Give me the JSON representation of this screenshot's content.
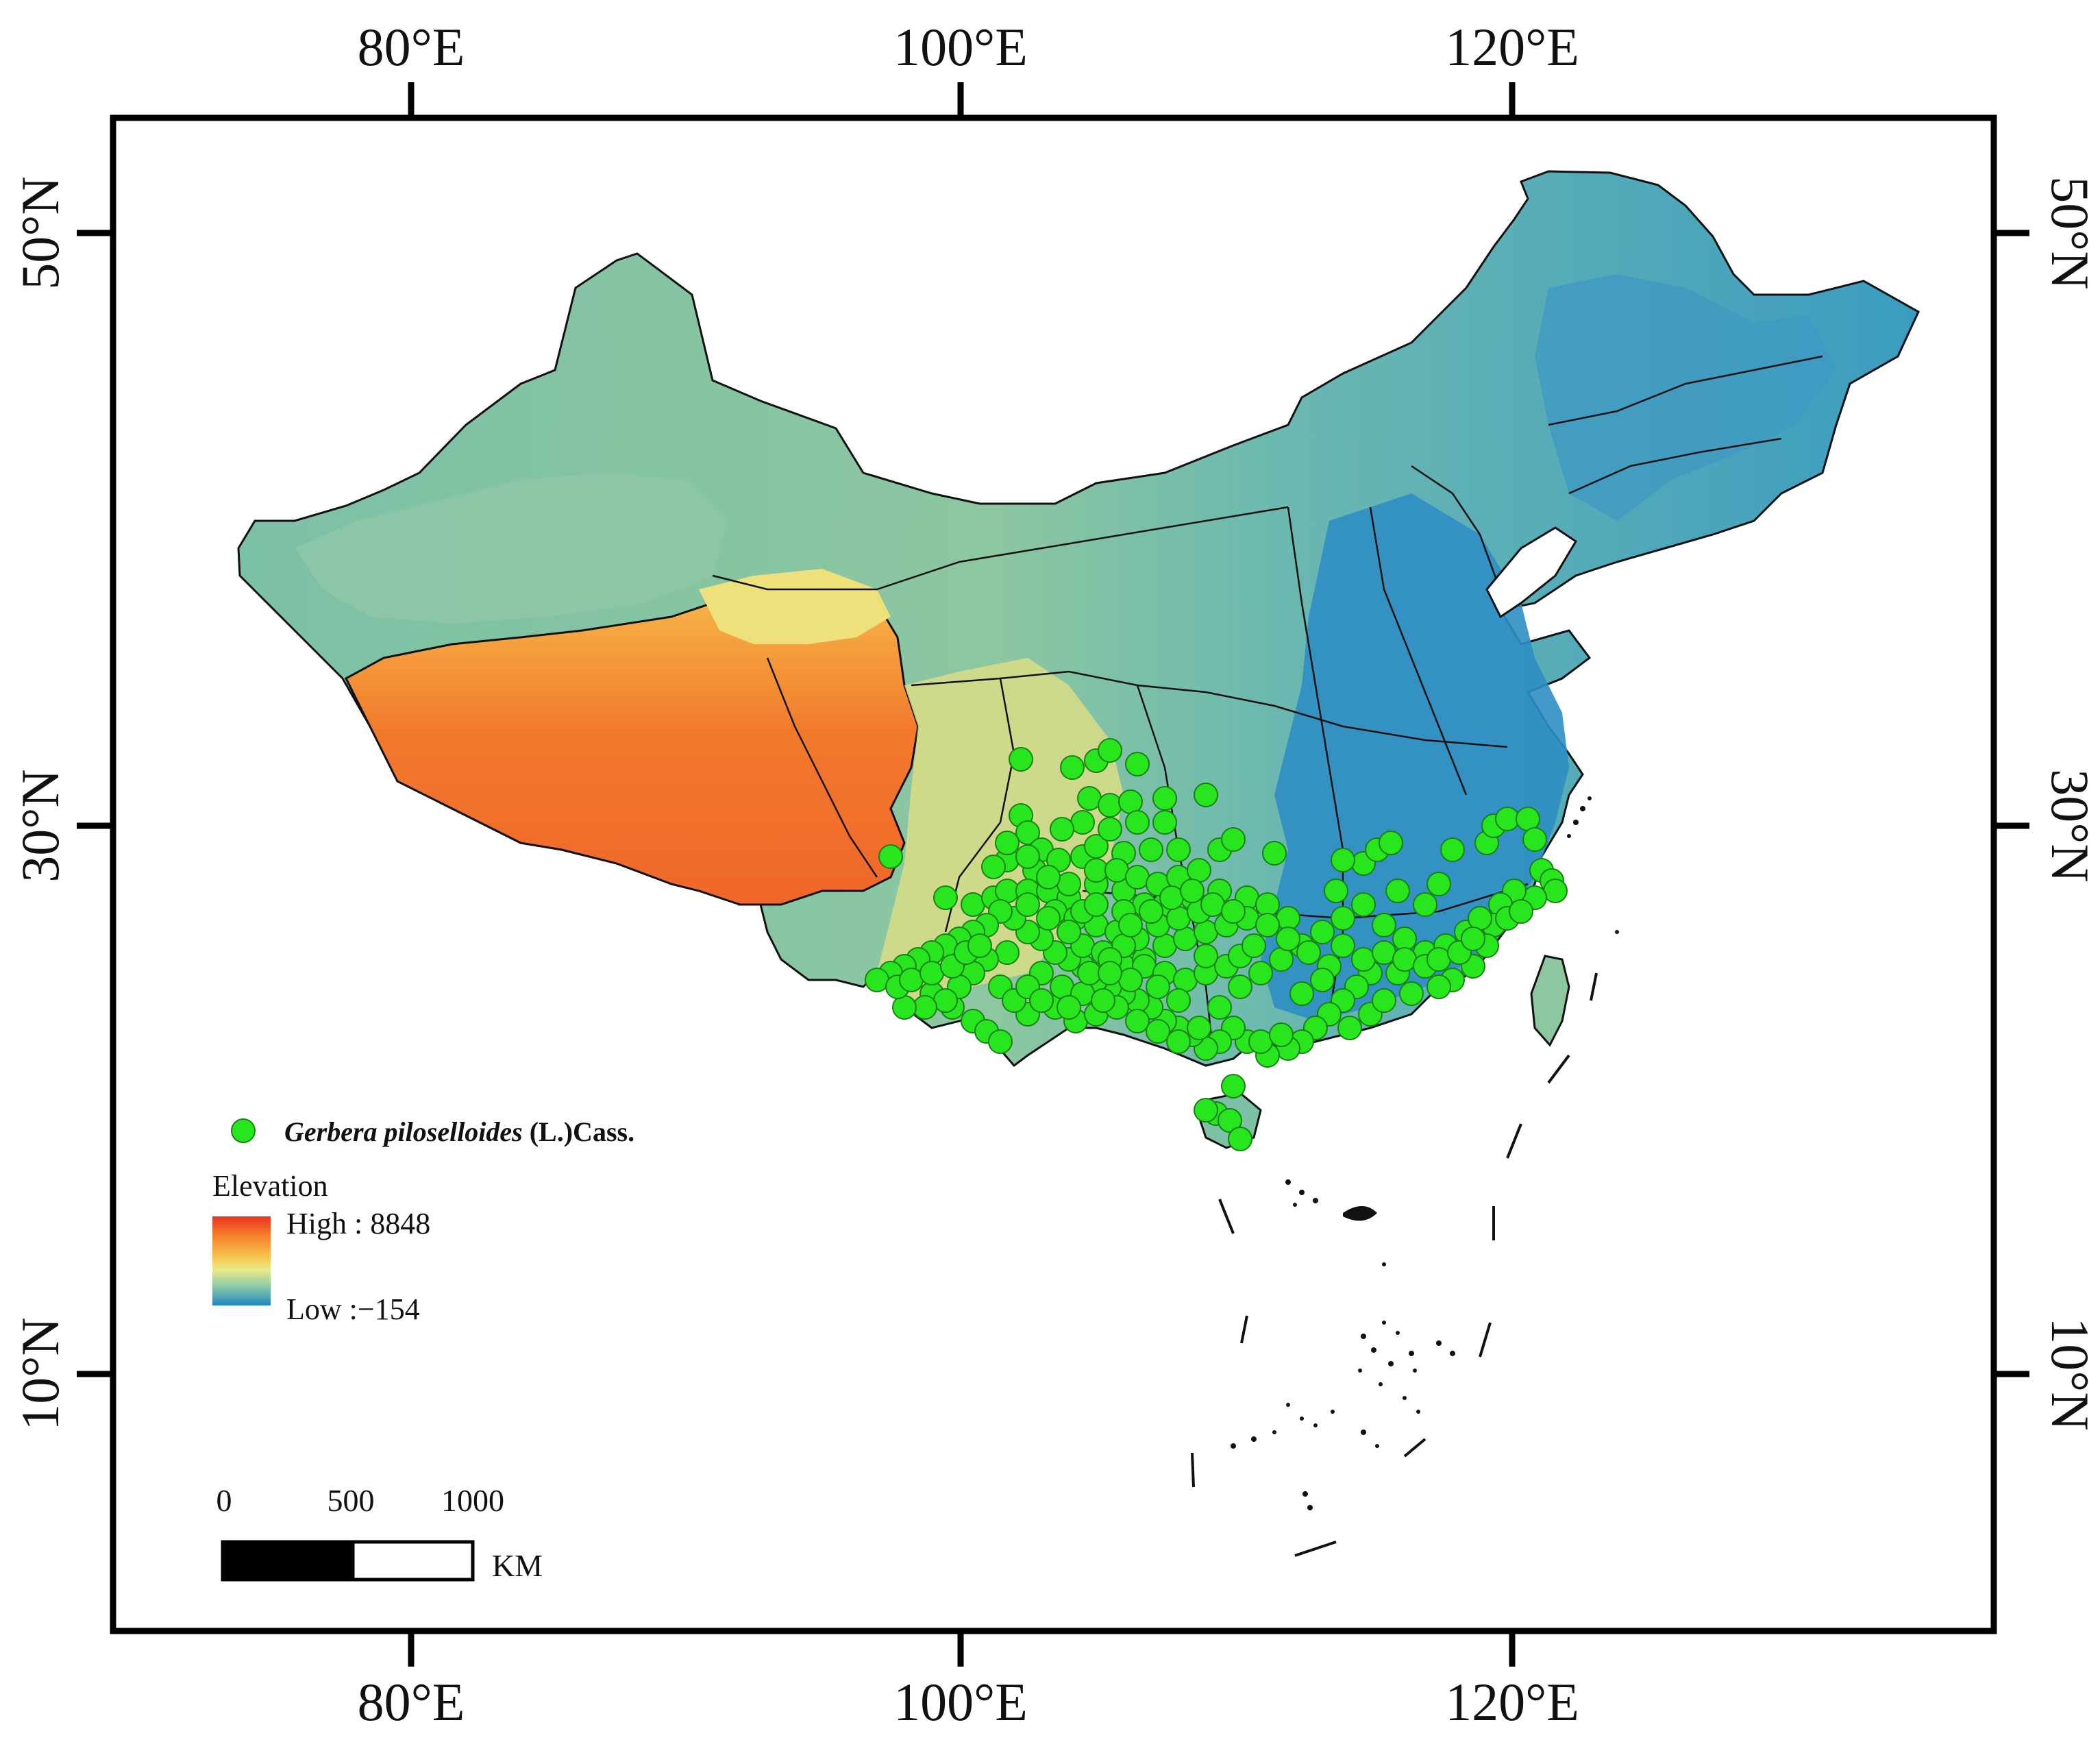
{
  "graticule": {
    "lon_labels": [
      "80°E",
      "100°E",
      "120°E"
    ],
    "lat_labels": [
      "50°N",
      "30°N",
      "10°N"
    ],
    "lon_values": [
      80,
      100,
      120
    ],
    "lat_values": [
      50,
      30,
      10
    ]
  },
  "legend": {
    "species_genus_species": "Gerbera piloselloides",
    "species_author": " (L.)Cass.",
    "elevation_title": "Elevation",
    "elevation_high": "High : 8848",
    "elevation_low": "Low :−154",
    "ramp_colors": [
      "#e8321e",
      "#f57a2a",
      "#f6c44a",
      "#e9ea8a",
      "#8fcca6",
      "#3aa0c8",
      "#1f86c2"
    ]
  },
  "scalebar": {
    "labels": [
      "0",
      "500",
      "1000"
    ],
    "unit": "KM"
  },
  "map": {
    "occurrence_color": "#27e61e",
    "land_colors": {
      "plateau_high": "#f26a2a",
      "plateau_mid": "#f6a03a",
      "basin_yellow": "#eee07a",
      "steppe_green": "#9fd09a",
      "lowland_teal": "#4aa6b8",
      "lowland_blue": "#2f8ec4"
    }
  }
}
